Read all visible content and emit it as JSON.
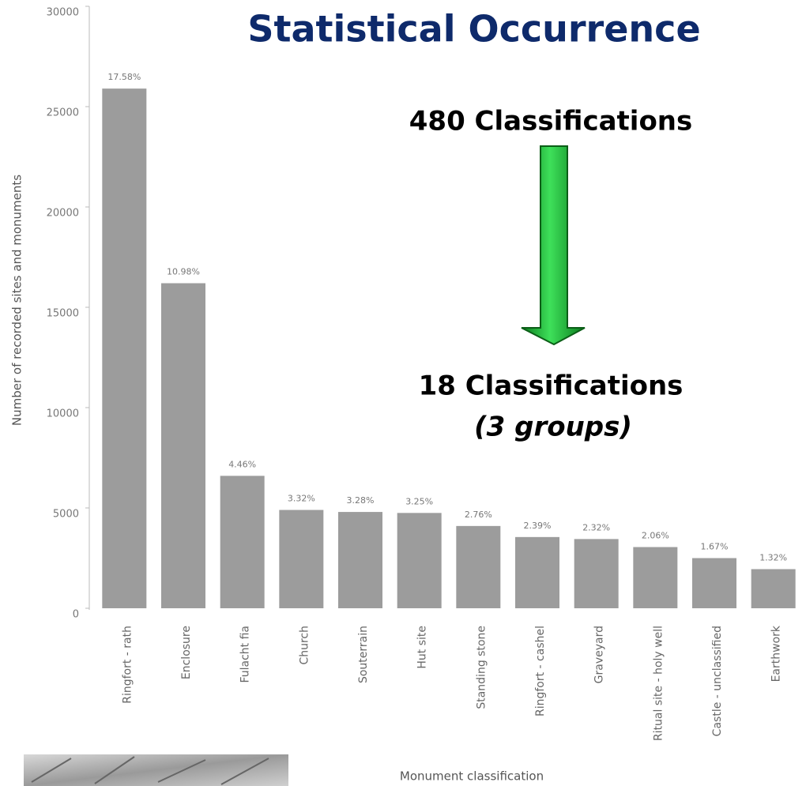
{
  "chart_data": {
    "type": "bar",
    "title": "Statistical Occurrence",
    "annotations": [
      "480 Classifications",
      "18 Classifications",
      "(3 groups)"
    ],
    "y_label": "Number of recorded sites and monuments",
    "x_label": "Monument classification",
    "categories": [
      "Ringfort - rath",
      "Enclosure",
      "Fulacht fia",
      "Church",
      "Souterrain",
      "Hut site",
      "Standing stone",
      "Ringfort - cashel",
      "Graveyard",
      "Ritual site - holy well",
      "Castle - unclassified",
      "Earthwork"
    ],
    "values": [
      25900,
      16200,
      6600,
      4900,
      4800,
      4750,
      4100,
      3550,
      3450,
      3050,
      2500,
      1950
    ],
    "percent_labels": [
      "17.58%",
      "10.98%",
      "4.46%",
      "3.32%",
      "3.28%",
      "3.25%",
      "2.76%",
      "2.39%",
      "2.32%",
      "2.06%",
      "1.67%",
      "1.32%"
    ],
    "color": "#9c9c9c",
    "ylim": [
      0,
      30000
    ],
    "yticks": [
      0,
      5000,
      10000,
      15000,
      20000,
      25000,
      30000
    ],
    "grid": false
  }
}
